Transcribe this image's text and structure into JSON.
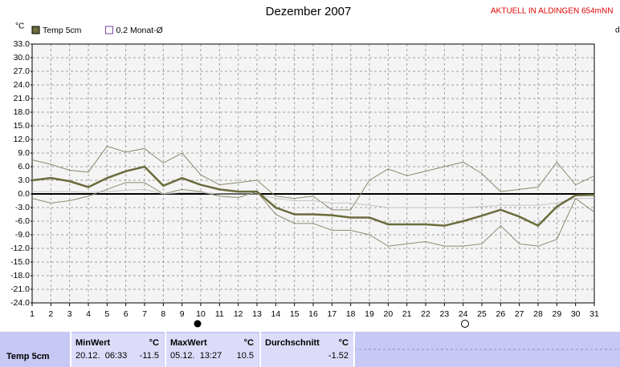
{
  "chart_data": {
    "type": "line",
    "title": "Dezember 2007",
    "annotation": "AKTUELL IN ALDINGEN 654mNN",
    "y_label": "°C",
    "x_label": "d",
    "x": [
      1,
      2,
      3,
      4,
      5,
      6,
      7,
      8,
      9,
      10,
      11,
      12,
      13,
      14,
      15,
      16,
      17,
      18,
      19,
      20,
      21,
      22,
      23,
      24,
      25,
      26,
      27,
      28,
      29,
      30,
      31
    ],
    "xlim": [
      1,
      31
    ],
    "xticks": [
      1,
      2,
      3,
      4,
      5,
      6,
      7,
      8,
      9,
      10,
      11,
      12,
      13,
      14,
      15,
      16,
      17,
      18,
      19,
      20,
      21,
      22,
      23,
      24,
      25,
      26,
      27,
      28,
      29,
      30,
      31
    ],
    "ylim": [
      -24,
      33
    ],
    "yticks": [
      {
        "value": -24,
        "label": "-24.0"
      },
      {
        "value": -21,
        "label": "-21.0"
      },
      {
        "value": -18,
        "label": "-18.0"
      },
      {
        "value": -15,
        "label": "-15.0"
      },
      {
        "value": -12,
        "label": "-12.0"
      },
      {
        "value": -9,
        "label": "-9.0"
      },
      {
        "value": -6,
        "label": "-6.0"
      },
      {
        "value": -3,
        "label": "-3.0"
      },
      {
        "value": 0,
        "label": "0.0"
      },
      {
        "value": 3,
        "label": "3.0"
      },
      {
        "value": 6,
        "label": "6.0"
      },
      {
        "value": 9,
        "label": "9.0"
      },
      {
        "value": 12,
        "label": "12.0"
      },
      {
        "value": 15,
        "label": "15.0"
      },
      {
        "value": 18,
        "label": "18.0"
      },
      {
        "value": 21,
        "label": "21.0"
      },
      {
        "value": 24,
        "label": "24.0"
      },
      {
        "value": 27,
        "label": "27.0"
      },
      {
        "value": 30,
        "label": "30.0"
      },
      {
        "value": 33,
        "label": "33.0"
      }
    ],
    "grid": true,
    "series": [
      {
        "name": "Temp 5cm",
        "color": "#6b6b3c",
        "width": 2.5,
        "legend": "filled",
        "values": [
          3,
          3.5,
          2.8,
          1.5,
          3.5,
          5,
          6,
          1.8,
          3.5,
          2,
          1,
          0.5,
          0.5,
          -3,
          -4.5,
          -4.5,
          -4.7,
          -5.2,
          -5.2,
          -6.7,
          -6.7,
          -6.7,
          -7,
          -6,
          -4.8,
          -3.5,
          -5,
          -7,
          -2.8,
          -0.3,
          -0.2
        ]
      },
      {
        "name": "0.2 Monat-Ø",
        "color": "#c4c4c4",
        "width": 1,
        "legend": "outline",
        "legend_color": "#8040a0",
        "values": [
          0.5,
          0.5,
          0.5,
          0.3,
          0.5,
          0.8,
          1,
          0,
          0.3,
          0.3,
          0,
          0,
          0,
          -1,
          -1.5,
          -1.5,
          -2,
          -2,
          -2.5,
          -3,
          -3,
          -3,
          -3,
          -3,
          -2.8,
          -2.5,
          -2.5,
          -2.5,
          -2,
          -1,
          -1
        ]
      },
      {
        "color": "#8a8a70",
        "width": 1,
        "values": [
          7.5,
          6.5,
          5.2,
          4.8,
          10.5,
          9.2,
          10,
          6.8,
          9,
          4.2,
          2,
          2.5,
          3,
          -0.5,
          -1,
          -0.5,
          -3.5,
          -3.5,
          3,
          5.5,
          4,
          5,
          6,
          7,
          4.5,
          0.5,
          1,
          1.5,
          7,
          2,
          4
        ]
      },
      {
        "color": "#8a8a70",
        "width": 1,
        "values": [
          -1,
          -2,
          -1.5,
          -0.5,
          1,
          2.5,
          2.5,
          0,
          1,
          0.5,
          -0.5,
          -0.8,
          0.5,
          -4.5,
          -6.5,
          -6.5,
          -8,
          -8,
          -9,
          -11.5,
          -11,
          -10.5,
          -11.5,
          -11.5,
          -11,
          -7,
          -11,
          -11.5,
          -10,
          -1,
          -4
        ]
      }
    ]
  },
  "stats": {
    "label": "Temp 5cm",
    "cells": [
      {
        "title": "MinWert",
        "unit": "°C",
        "when": "20.12.  06:33",
        "value": -11.5
      },
      {
        "title": "MaxWert",
        "unit": "°C",
        "when": "05.12.  13:27",
        "value": 10.5
      },
      {
        "title": "Durchschnitt",
        "unit": "°C",
        "when": "",
        "value": -1.52
      }
    ]
  }
}
